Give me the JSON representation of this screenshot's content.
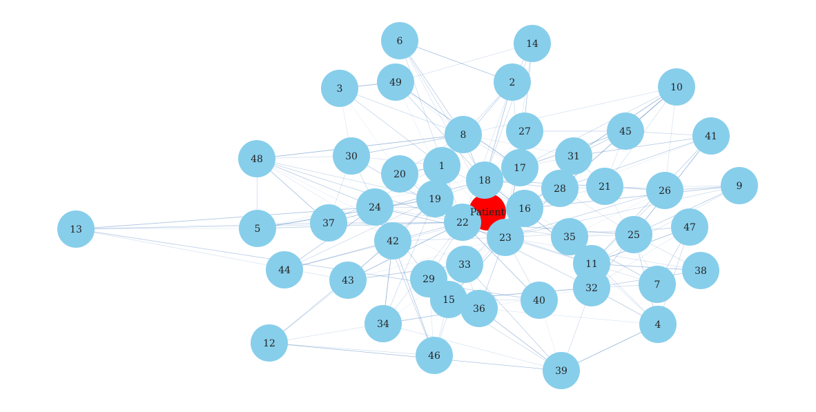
{
  "graph": {
    "colors": {
      "node": "#87CEEB",
      "center_node": "#FF0000",
      "edge": "#4A7FBF",
      "label": "#222222",
      "background": "#FFFFFF"
    },
    "center": {
      "id": "Patient",
      "label": "Patient"
    },
    "nodes": [
      {
        "id": "1",
        "label": "1"
      },
      {
        "id": "2",
        "label": "2"
      },
      {
        "id": "3",
        "label": "3"
      },
      {
        "id": "4",
        "label": "4"
      },
      {
        "id": "5",
        "label": "5"
      },
      {
        "id": "6",
        "label": "6"
      },
      {
        "id": "7",
        "label": "7"
      },
      {
        "id": "8",
        "label": "8"
      },
      {
        "id": "9",
        "label": "9"
      },
      {
        "id": "10",
        "label": "10"
      },
      {
        "id": "11",
        "label": "11"
      },
      {
        "id": "12",
        "label": "12"
      },
      {
        "id": "13",
        "label": "13"
      },
      {
        "id": "14",
        "label": "14"
      },
      {
        "id": "15",
        "label": "15"
      },
      {
        "id": "16",
        "label": "16"
      },
      {
        "id": "17",
        "label": "17"
      },
      {
        "id": "18",
        "label": "18"
      },
      {
        "id": "19",
        "label": "19"
      },
      {
        "id": "20",
        "label": "20"
      },
      {
        "id": "21",
        "label": "21"
      },
      {
        "id": "22",
        "label": "22"
      },
      {
        "id": "23",
        "label": "23"
      },
      {
        "id": "24",
        "label": "24"
      },
      {
        "id": "25",
        "label": "25"
      },
      {
        "id": "26",
        "label": "26"
      },
      {
        "id": "27",
        "label": "27"
      },
      {
        "id": "28",
        "label": "28"
      },
      {
        "id": "29",
        "label": "29"
      },
      {
        "id": "30",
        "label": "30"
      },
      {
        "id": "31",
        "label": "31"
      },
      {
        "id": "32",
        "label": "32"
      },
      {
        "id": "33",
        "label": "33"
      },
      {
        "id": "34",
        "label": "34"
      },
      {
        "id": "35",
        "label": "35"
      },
      {
        "id": "36",
        "label": "36"
      },
      {
        "id": "37",
        "label": "37"
      },
      {
        "id": "38",
        "label": "38"
      },
      {
        "id": "39",
        "label": "39"
      },
      {
        "id": "40",
        "label": "40"
      },
      {
        "id": "41",
        "label": "41"
      },
      {
        "id": "42",
        "label": "42"
      },
      {
        "id": "43",
        "label": "43"
      },
      {
        "id": "44",
        "label": "44"
      },
      {
        "id": "45",
        "label": "45"
      },
      {
        "id": "46",
        "label": "46"
      },
      {
        "id": "47",
        "label": "47"
      },
      {
        "id": "48",
        "label": "48"
      },
      {
        "id": "49",
        "label": "49"
      }
    ],
    "edges": [
      [
        "13",
        "5"
      ],
      [
        "13",
        "37"
      ],
      [
        "13",
        "24"
      ],
      [
        "13",
        "22"
      ],
      [
        "13",
        "43"
      ],
      [
        "13",
        "40"
      ],
      [
        "48",
        "30"
      ],
      [
        "48",
        "24"
      ],
      [
        "48",
        "19"
      ],
      [
        "48",
        "42"
      ],
      [
        "48",
        "22"
      ],
      [
        "48",
        "8"
      ],
      [
        "48",
        "33"
      ],
      [
        "48",
        "5"
      ],
      [
        "48",
        "37"
      ],
      [
        "12",
        "43"
      ],
      [
        "12",
        "34"
      ],
      [
        "12",
        "42"
      ],
      [
        "12",
        "46"
      ],
      [
        "12",
        "39"
      ],
      [
        "3",
        "8"
      ],
      [
        "3",
        "30"
      ],
      [
        "3",
        "1"
      ],
      [
        "3",
        "49"
      ],
      [
        "3",
        "20"
      ],
      [
        "6",
        "18"
      ],
      [
        "6",
        "2"
      ],
      [
        "6",
        "22"
      ],
      [
        "6",
        "23"
      ],
      [
        "6",
        "8"
      ],
      [
        "14",
        "49"
      ],
      [
        "14",
        "17"
      ],
      [
        "14",
        "18"
      ],
      [
        "14",
        "23"
      ],
      [
        "14",
        "2"
      ],
      [
        "10",
        "31"
      ],
      [
        "10",
        "28"
      ],
      [
        "10",
        "17"
      ],
      [
        "10",
        "45"
      ],
      [
        "10",
        "21"
      ],
      [
        "10",
        "26"
      ],
      [
        "10",
        "23"
      ],
      [
        "10",
        "8"
      ],
      [
        "41",
        "31"
      ],
      [
        "41",
        "28"
      ],
      [
        "41",
        "22"
      ],
      [
        "41",
        "11"
      ],
      [
        "41",
        "25"
      ],
      [
        "41",
        "16"
      ],
      [
        "41",
        "45"
      ],
      [
        "9",
        "16"
      ],
      [
        "9",
        "23"
      ],
      [
        "9",
        "28"
      ],
      [
        "9",
        "26"
      ],
      [
        "9",
        "11"
      ],
      [
        "9",
        "25"
      ],
      [
        "47",
        "23"
      ],
      [
        "47",
        "32"
      ],
      [
        "47",
        "7"
      ],
      [
        "47",
        "11"
      ],
      [
        "47",
        "35"
      ],
      [
        "47",
        "4"
      ],
      [
        "38",
        "11"
      ],
      [
        "38",
        "25"
      ],
      [
        "38",
        "23"
      ],
      [
        "38",
        "32"
      ],
      [
        "4",
        "11"
      ],
      [
        "4",
        "32"
      ],
      [
        "4",
        "35"
      ],
      [
        "4",
        "36"
      ],
      [
        "4",
        "25"
      ],
      [
        "4",
        "39"
      ],
      [
        "39",
        "40"
      ],
      [
        "39",
        "15"
      ],
      [
        "39",
        "36"
      ],
      [
        "39",
        "32"
      ],
      [
        "39",
        "34"
      ],
      [
        "39",
        "33"
      ],
      [
        "46",
        "15"
      ],
      [
        "46",
        "42"
      ],
      [
        "46",
        "33"
      ],
      [
        "46",
        "29"
      ],
      [
        "46",
        "24"
      ],
      [
        "34",
        "42"
      ],
      [
        "34",
        "33"
      ],
      [
        "34",
        "19"
      ],
      [
        "34",
        "36"
      ],
      [
        "34",
        "22"
      ],
      [
        "44",
        "22"
      ],
      [
        "44",
        "42"
      ],
      [
        "44",
        "16"
      ],
      [
        "44",
        "24"
      ],
      [
        "44",
        "19"
      ],
      [
        "5",
        "24"
      ],
      [
        "5",
        "22"
      ],
      [
        "5",
        "19"
      ],
      [
        "5",
        "17"
      ],
      [
        "37",
        "22"
      ],
      [
        "37",
        "18"
      ],
      [
        "37",
        "1"
      ],
      [
        "37",
        "30"
      ],
      [
        "30",
        "22"
      ],
      [
        "30",
        "1"
      ],
      [
        "30",
        "8"
      ],
      [
        "30",
        "42"
      ],
      [
        "49",
        "8"
      ],
      [
        "49",
        "18"
      ],
      [
        "49",
        "17"
      ],
      [
        "49",
        "22"
      ],
      [
        "2",
        "8"
      ],
      [
        "2",
        "18"
      ],
      [
        "2",
        "17"
      ],
      [
        "2",
        "22"
      ],
      [
        "2",
        "1"
      ],
      [
        "8",
        "17"
      ],
      [
        "8",
        "23"
      ],
      [
        "8",
        "20"
      ],
      [
        "8",
        "31"
      ],
      [
        "27",
        "17"
      ],
      [
        "27",
        "23"
      ],
      [
        "27",
        "18"
      ],
      [
        "27",
        "45"
      ],
      [
        "45",
        "17"
      ],
      [
        "45",
        "23"
      ],
      [
        "45",
        "21"
      ],
      [
        "45",
        "31"
      ],
      [
        "31",
        "17"
      ],
      [
        "31",
        "23"
      ],
      [
        "31",
        "21"
      ],
      [
        "31",
        "28"
      ],
      [
        "26",
        "23"
      ],
      [
        "26",
        "21"
      ],
      [
        "26",
        "35"
      ],
      [
        "26",
        "11"
      ],
      [
        "25",
        "22"
      ],
      [
        "25",
        "35"
      ],
      [
        "25",
        "28"
      ],
      [
        "25",
        "32"
      ],
      [
        "7",
        "23"
      ],
      [
        "7",
        "35"
      ],
      [
        "7",
        "32"
      ],
      [
        "7",
        "21"
      ],
      [
        "32",
        "22"
      ],
      [
        "32",
        "15"
      ],
      [
        "32",
        "36"
      ],
      [
        "32",
        "35"
      ],
      [
        "40",
        "22"
      ],
      [
        "40",
        "23"
      ],
      [
        "40",
        "15"
      ],
      [
        "36",
        "23"
      ],
      [
        "36",
        "33"
      ],
      [
        "36",
        "15"
      ],
      [
        "29",
        "22"
      ],
      [
        "29",
        "23"
      ],
      [
        "29",
        "24"
      ],
      [
        "43",
        "22"
      ],
      [
        "43",
        "23"
      ],
      [
        "43",
        "19"
      ],
      [
        "43",
        "33"
      ],
      [
        "42",
        "23"
      ],
      [
        "42",
        "22"
      ],
      [
        "42",
        "19"
      ],
      [
        "24",
        "22"
      ],
      [
        "24",
        "23"
      ],
      [
        "24",
        "16"
      ],
      [
        "20",
        "23"
      ],
      [
        "20",
        "22"
      ],
      [
        "20",
        "1"
      ],
      [
        "1",
        "23"
      ],
      [
        "1",
        "16"
      ],
      [
        "19",
        "23"
      ],
      [
        "19",
        "17"
      ],
      [
        "28",
        "22"
      ],
      [
        "28",
        "18"
      ],
      [
        "21",
        "22"
      ],
      [
        "21",
        "18"
      ],
      [
        "35",
        "22"
      ],
      [
        "35",
        "18"
      ],
      [
        "11",
        "22"
      ],
      [
        "11",
        "18"
      ],
      [
        "33",
        "23"
      ],
      [
        "33",
        "16"
      ],
      [
        "15",
        "23"
      ],
      [
        "15",
        "16"
      ]
    ]
  }
}
